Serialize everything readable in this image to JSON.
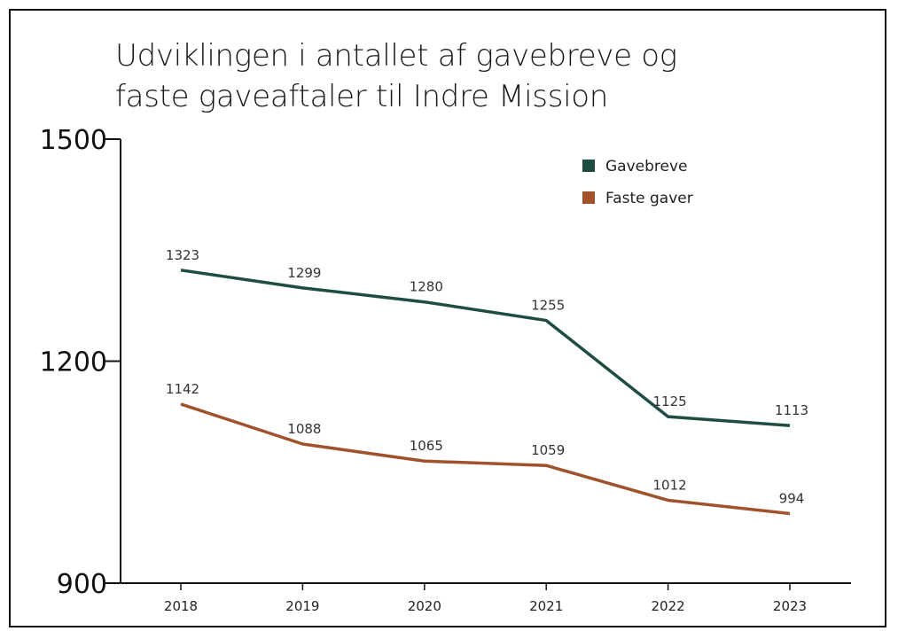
{
  "chart_data": {
    "type": "line",
    "title_lines": [
      "Udviklingen i antallet af gavebreve og",
      "faste gaveaftaler til Indre Mission"
    ],
    "x": [
      "2018",
      "2019",
      "2020",
      "2021",
      "2022",
      "2023"
    ],
    "ylim": [
      900,
      1500
    ],
    "yticks": [
      "1500",
      "1200",
      "900"
    ],
    "ytick_values": [
      1500,
      1200,
      900
    ],
    "xlabel": "",
    "ylabel": "",
    "grid": false,
    "legend_position": "top-right",
    "series": [
      {
        "name": "Gavebreve",
        "color": "#1f4d44",
        "values": [
          1323,
          1299,
          1280,
          1255,
          1125,
          1113
        ],
        "labels": [
          "1323",
          "1299",
          "1280",
          "1255",
          "1125",
          "1113"
        ]
      },
      {
        "name": "Faste gaver",
        "color": "#a0522d",
        "values": [
          1142,
          1088,
          1065,
          1059,
          1012,
          994
        ],
        "labels": [
          "1142",
          "1088",
          "1065",
          "1059",
          "1012",
          "994"
        ]
      }
    ]
  }
}
